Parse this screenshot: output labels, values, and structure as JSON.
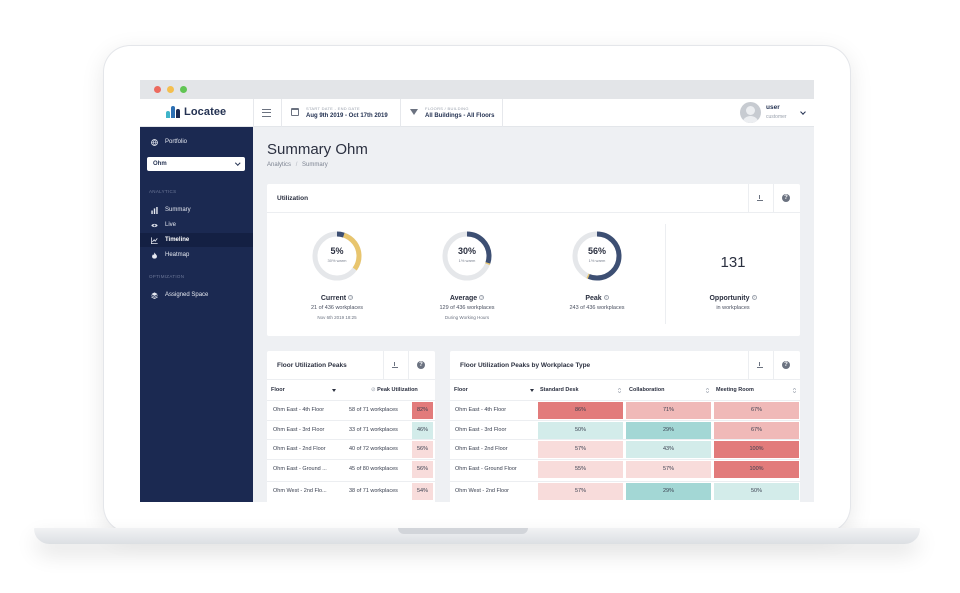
{
  "colors": {
    "sidebar": "#1b2951",
    "accent": "#3d4f73",
    "warm": "#e8c56e",
    "red_strong": "#e27b7b",
    "red_mid": "#f0b9b8",
    "red_light": "#f8dcdb",
    "teal_light": "#d3ecea",
    "teal_mid": "#a3d7d5"
  },
  "topbar": {
    "logo_text": "Locatee",
    "date_label": "START DATE - END DATE",
    "date_value": "Aug 9th 2019 - Oct 17th 2019",
    "filter_label": "FLOORS / BUILDING",
    "filter_value": "All Buildings - All Floors",
    "user_name": "user",
    "user_role": "customer",
    "icons": [
      "menu-icon",
      "calendar-icon",
      "filter-icon",
      "chevron-down-icon"
    ]
  },
  "sidebar": {
    "portfolio_label": "Portfolio",
    "select_value": "Ohm",
    "section_analytics": "ANALYTICS",
    "items": [
      {
        "label": "Summary",
        "icon": "bar-chart-icon"
      },
      {
        "label": "Live",
        "icon": "eye-icon"
      },
      {
        "label": "Timeline",
        "icon": "line-chart-icon"
      },
      {
        "label": "Heatmap",
        "icon": "flame-icon"
      }
    ],
    "section_optimization": "OPTIMIZATION",
    "assigned_label": "Assigned Space"
  },
  "page": {
    "title": "Summary Ohm",
    "breadcrumb_1": "Analytics",
    "breadcrumb_sep": "/",
    "breadcrumb_2": "Summary"
  },
  "utilization": {
    "title": "Utilization",
    "metrics": [
      {
        "pct": "5%",
        "pct_value": 5,
        "sub": "30% warm",
        "warm_value": 30,
        "title": "Current",
        "line1": "21 of 436 workplaces",
        "line2": "Nov 6th 2019 18:25"
      },
      {
        "pct": "30%",
        "pct_value": 30,
        "sub": "1% warm",
        "warm_value": 1,
        "title": "Average",
        "line1": "129 of 436 workplaces",
        "line2": "During Working Hours"
      },
      {
        "pct": "56%",
        "pct_value": 56,
        "sub": "1% warm",
        "warm_value": 1,
        "title": "Peak",
        "line1": "243 of 436 workplaces",
        "line2": ""
      }
    ],
    "opportunity_number": "131",
    "opportunity_title": "Opportunity",
    "opportunity_sub": "in workplaces"
  },
  "floor_peaks": {
    "title": "Floor Utilization Peaks",
    "col_floor": "Floor",
    "col_peak": "Peak Utilization",
    "rows": [
      {
        "floor": "Ohm East - 4th Floor",
        "workplaces": "58 of 71 workplaces",
        "peak": "82%",
        "level": "strong"
      },
      {
        "floor": "Ohm East - 3rd Floor",
        "workplaces": "33 of 71 workplaces",
        "peak": "46%",
        "level": "teal_light"
      },
      {
        "floor": "Ohm East - 2nd Floor",
        "workplaces": "40 of 72 workplaces",
        "peak": "56%",
        "level": "light"
      },
      {
        "floor": "Ohm East - Ground ...",
        "workplaces": "45 of 80 workplaces",
        "peak": "56%",
        "level": "light"
      },
      {
        "floor": "Ohm West - 2nd Flo...",
        "workplaces": "38 of 71 workplaces",
        "peak": "54%",
        "level": "light"
      }
    ]
  },
  "type_peaks": {
    "title": "Floor Utilization Peaks by Workplace Type",
    "col_floor": "Floor",
    "col_desk": "Standard Desk",
    "col_collab": "Collaboration",
    "col_meeting": "Meeting Room",
    "rows": [
      {
        "floor": "Ohm East - 4th Floor",
        "desk": "86%",
        "collab": "71%",
        "meeting": "67%",
        "desk_level": "strong",
        "collab_level": "mid",
        "meeting_level": "mid"
      },
      {
        "floor": "Ohm East - 3rd Floor",
        "desk": "50%",
        "collab": "29%",
        "meeting": "67%",
        "desk_level": "teal_light",
        "collab_level": "teal_mid",
        "meeting_level": "mid"
      },
      {
        "floor": "Ohm East - 2nd Floor",
        "desk": "57%",
        "collab": "43%",
        "meeting": "100%",
        "desk_level": "light",
        "collab_level": "teal_light",
        "meeting_level": "strong"
      },
      {
        "floor": "Ohm East - Ground Floor",
        "desk": "55%",
        "collab": "57%",
        "meeting": "100%",
        "desk_level": "light",
        "collab_level": "light",
        "meeting_level": "strong"
      },
      {
        "floor": "Ohm West - 2nd Floor",
        "desk": "57%",
        "collab": "29%",
        "meeting": "50%",
        "desk_level": "light",
        "collab_level": "teal_mid",
        "meeting_level": "teal_light"
      }
    ]
  }
}
